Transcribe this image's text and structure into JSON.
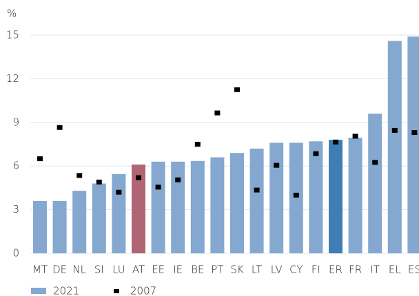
{
  "chart_data": {
    "type": "bar",
    "y_label": "%",
    "categories": [
      "MT",
      "DE",
      "NL",
      "SI",
      "LU",
      "AT",
      "EE",
      "IE",
      "BE",
      "PT",
      "SK",
      "LT",
      "LV",
      "CY",
      "FI",
      "ER",
      "FR",
      "IT",
      "EL",
      "ES"
    ],
    "series": [
      {
        "name": "2021",
        "style": "bar",
        "color": "#84a8d0",
        "colors": [
          "#84a8d0",
          "#84a8d0",
          "#84a8d0",
          "#84a8d0",
          "#84a8d0",
          "#b06474",
          "#84a8d0",
          "#84a8d0",
          "#84a8d0",
          "#84a8d0",
          "#84a8d0",
          "#84a8d0",
          "#84a8d0",
          "#84a8d0",
          "#84a8d0",
          "#3f7db5",
          "#84a8d0",
          "#84a8d0",
          "#84a8d0",
          "#84a8d0"
        ],
        "values": [
          3.6,
          3.6,
          4.3,
          4.8,
          5.45,
          6.1,
          6.3,
          6.3,
          6.35,
          6.6,
          6.9,
          7.2,
          7.6,
          7.6,
          7.7,
          7.8,
          7.95,
          9.6,
          14.6,
          14.9
        ]
      },
      {
        "name": "2007",
        "style": "marker",
        "color": "#000000",
        "values": [
          6.5,
          8.65,
          5.35,
          4.9,
          4.2,
          5.2,
          4.55,
          5.05,
          7.5,
          9.65,
          11.25,
          4.35,
          6.05,
          4.0,
          6.85,
          7.65,
          8.05,
          6.25,
          8.45,
          8.3
        ]
      }
    ],
    "ylim": [
      0,
      15
    ],
    "yticks": [
      0,
      3,
      6,
      9,
      12,
      15
    ],
    "grid": true
  }
}
